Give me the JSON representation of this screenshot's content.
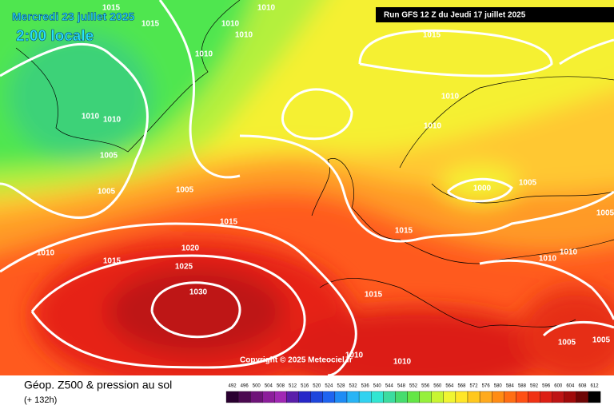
{
  "header": {
    "date": "Mercredi 23 juillet 2025",
    "time": "2:00 locale",
    "run": "Run GFS 12 Z du Jeudi 17 juillet 2025"
  },
  "copyright": "Copyright © 2025 Meteociel.fr",
  "footer": {
    "title": "Géop. Z500 & pression au sol",
    "lead": "(+ 132h)"
  },
  "isobar_labels": [
    "1015",
    "1010",
    "1015",
    "1010",
    "1010",
    "1010",
    "1015",
    "1010",
    "1010",
    "1010",
    "1010",
    "1005",
    "1005",
    "1005",
    "1000",
    "1005",
    "1015",
    "1015",
    "1005",
    "1010",
    "1015",
    "1020",
    "1025",
    "1030",
    "1010",
    "1010",
    "1015",
    "1010",
    "1005",
    "1005",
    "1010"
  ],
  "legend": {
    "labels": [
      492,
      496,
      500,
      504,
      508,
      512,
      516,
      520,
      524,
      528,
      532,
      536,
      540,
      544,
      548,
      552,
      556,
      560,
      564,
      568,
      572,
      576,
      580,
      584,
      588,
      592,
      596,
      600,
      604,
      608,
      612
    ],
    "colors": [
      "#2a0030",
      "#4b0a50",
      "#6e1478",
      "#8c1e9b",
      "#a028b4",
      "#5a1eaa",
      "#2828c8",
      "#1e46dc",
      "#1e64f0",
      "#1e8cf5",
      "#28b4f5",
      "#32d2f0",
      "#32e6d2",
      "#3cdca0",
      "#46dc6e",
      "#64e646",
      "#96f03c",
      "#c8f532",
      "#f0f532",
      "#ffe628",
      "#ffc81e",
      "#ffaa1e",
      "#ff8c14",
      "#ff6e14",
      "#ff5014",
      "#f03214",
      "#dc1e14",
      "#be1414",
      "#a00a0a",
      "#6e0505",
      "#000000"
    ]
  }
}
